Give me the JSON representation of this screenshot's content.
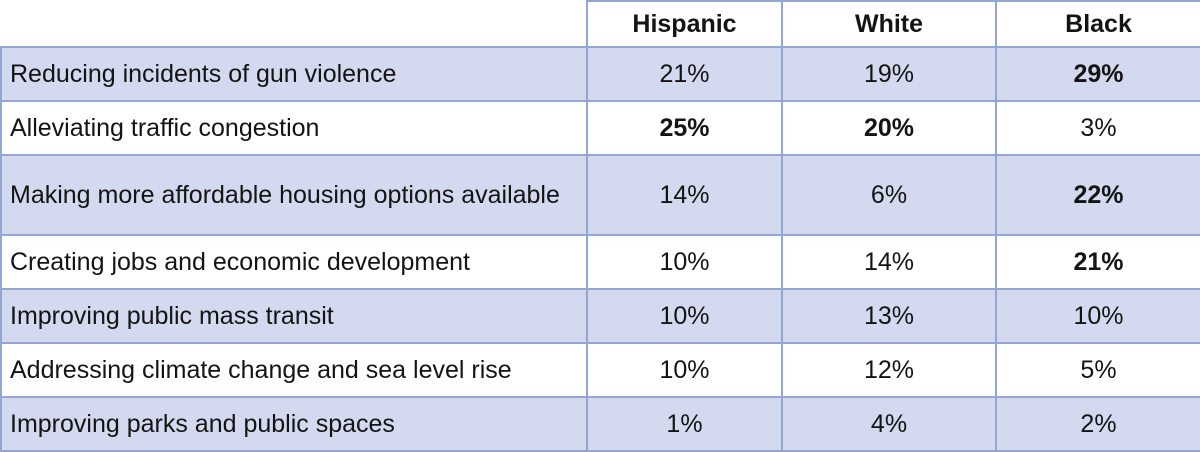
{
  "chart_data": {
    "type": "table",
    "columns": [
      "",
      "Hispanic",
      "White",
      "Black"
    ],
    "rows": [
      {
        "label": "Reducing incidents of gun violence",
        "values": [
          "21%",
          "19%",
          "29%"
        ],
        "bold": [
          false,
          false,
          true
        ]
      },
      {
        "label": "Alleviating traffic congestion",
        "values": [
          "25%",
          "20%",
          "3%"
        ],
        "bold": [
          true,
          true,
          false
        ]
      },
      {
        "label": "Making more affordable housing options available",
        "values": [
          "14%",
          "6%",
          "22%"
        ],
        "bold": [
          false,
          false,
          true
        ]
      },
      {
        "label": "Creating jobs and economic development",
        "values": [
          "10%",
          "14%",
          "21%"
        ],
        "bold": [
          false,
          false,
          true
        ]
      },
      {
        "label": "Improving public mass transit",
        "values": [
          "10%",
          "13%",
          "10%"
        ],
        "bold": [
          false,
          false,
          false
        ]
      },
      {
        "label": "Addressing climate change and sea level rise",
        "values": [
          "10%",
          "12%",
          "5%"
        ],
        "bold": [
          false,
          false,
          false
        ]
      },
      {
        "label": "Improving parks and public spaces",
        "values": [
          "1%",
          "4%",
          "2%"
        ],
        "bold": [
          false,
          false,
          false
        ]
      }
    ],
    "colors": {
      "stripe": "#d3d9ee",
      "border": "#93a6cf"
    }
  }
}
